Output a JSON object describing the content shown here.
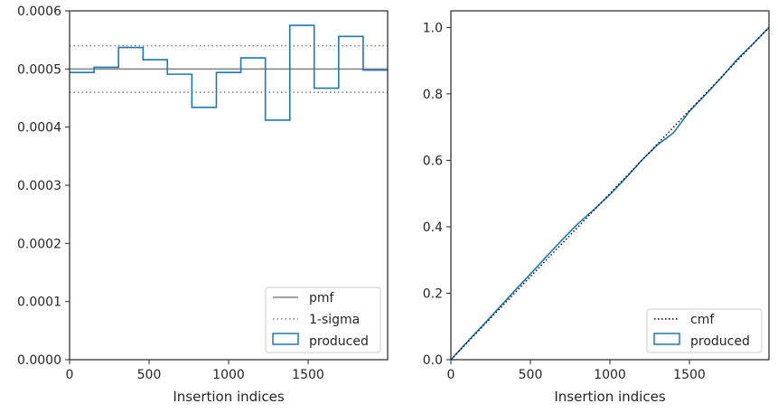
{
  "chart_data": [
    {
      "type": "step",
      "xlabel": "Insertion indices",
      "ylabel": "",
      "xlim": [
        0,
        2000
      ],
      "ylim": [
        0,
        0.0006
      ],
      "x_ticks": [
        0,
        500,
        1000,
        1500
      ],
      "y_ticks": [
        0,
        0.0001,
        0.0002,
        0.0003,
        0.0004,
        0.0005,
        0.0006
      ],
      "x_tick_labels": [
        "0",
        "500",
        "1000",
        "1500"
      ],
      "y_tick_labels": [
        "0.0000",
        "0.0001",
        "0.0002",
        "0.0003",
        "0.0004",
        "0.0005",
        "0.0006"
      ],
      "pmf": 0.0005,
      "sigma_band": [
        0.00046,
        0.00054
      ],
      "bin_edges": [
        0,
        154,
        308,
        462,
        615,
        769,
        923,
        1077,
        1231,
        1385,
        1538,
        1692,
        1846,
        2000
      ],
      "series": [
        {
          "name": "produced",
          "values": [
            0.000494,
            0.000503,
            0.000537,
            0.000516,
            0.000491,
            0.000434,
            0.000494,
            0.000519,
            0.000412,
            0.000575,
            0.000467,
            0.000556,
            0.000498
          ]
        }
      ],
      "legend": {
        "placement": "lower-right",
        "entries": [
          "pmf",
          "1-sigma",
          "produced"
        ]
      },
      "colors": {
        "pmf": "#808080",
        "sigma": "#808080",
        "produced": "#1f77b4"
      }
    },
    {
      "type": "line",
      "xlabel": "Insertion indices",
      "ylabel": "",
      "xlim": [
        0,
        2000
      ],
      "ylim": [
        0,
        1.05
      ],
      "x_ticks": [
        0,
        500,
        1000,
        1500
      ],
      "y_ticks": [
        0,
        0.2,
        0.4,
        0.6,
        0.8,
        1.0
      ],
      "x_tick_labels": [
        "0",
        "500",
        "1000",
        "1500"
      ],
      "y_tick_labels": [
        "0.0",
        "0.2",
        "0.4",
        "0.6",
        "0.8",
        "1.0"
      ],
      "series": [
        {
          "name": "cmf",
          "x": [
            0,
            2000
          ],
          "y": [
            0,
            1.0
          ]
        },
        {
          "name": "produced",
          "x": [
            0,
            100,
            200,
            300,
            400,
            500,
            600,
            700,
            800,
            900,
            1000,
            1100,
            1200,
            1300,
            1400,
            1500,
            1600,
            1700,
            1800,
            1900,
            2000
          ],
          "y": [
            0,
            0.052,
            0.103,
            0.155,
            0.207,
            0.258,
            0.31,
            0.361,
            0.41,
            0.452,
            0.497,
            0.547,
            0.6,
            0.647,
            0.683,
            0.748,
            0.797,
            0.849,
            0.904,
            0.951,
            1.0
          ]
        }
      ],
      "legend": {
        "placement": "lower-right",
        "entries": [
          "cmf",
          "produced"
        ]
      },
      "colors": {
        "cmf": "#000000",
        "produced": "#1f77b4"
      }
    }
  ]
}
